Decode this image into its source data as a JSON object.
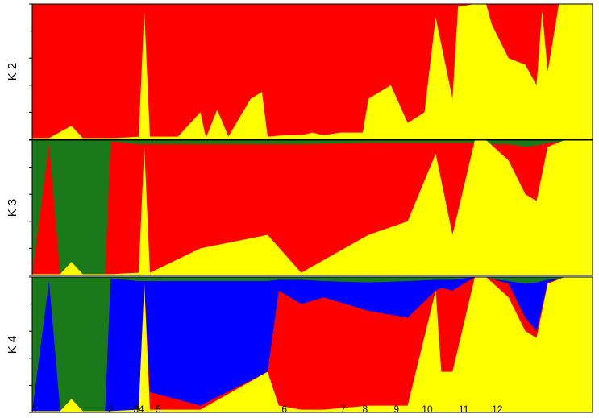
{
  "chart_data": {
    "type": "area",
    "description_of_layout": "stacked",
    "ylim": [
      0,
      1
    ],
    "colors": {
      "red": "#ff0000",
      "yellow": "#ffff00",
      "green": "#1a7a1a",
      "blue": "#0000ff"
    },
    "population_labels": [
      "1",
      "2",
      "34",
      "5",
      "6",
      "7",
      "8",
      "9",
      "10",
      "11",
      "12"
    ],
    "panels": [
      {
        "label": "K 2",
        "order": [
          "yellow",
          "red"
        ],
        "boundaries": {
          "x": [
            0,
            0.03,
            0.07,
            0.09,
            0.1,
            0.15,
            0.19,
            0.2,
            0.21,
            0.26,
            0.3,
            0.31,
            0.33,
            0.35,
            0.39,
            0.41,
            0.42,
            0.45,
            0.46,
            0.48,
            0.5,
            0.52,
            0.55,
            0.59,
            0.6,
            0.64,
            0.67,
            0.7,
            0.72,
            0.75,
            0.76,
            0.79,
            0.8,
            0.81,
            0.82,
            0.85,
            0.88,
            0.9,
            0.91,
            0.92,
            0.94,
            0.95,
            0.96,
            1
          ],
          "yellow": [
            [
              0.01
            ],
            [
              0.01
            ],
            [
              0.1
            ],
            [
              0.01
            ],
            [
              0.01
            ],
            [
              0.01
            ],
            [
              0.02
            ],
            [
              0.95
            ],
            [
              0.02
            ],
            [
              0.02
            ],
            [
              0.2
            ],
            [
              0.01
            ],
            [
              0.22
            ],
            [
              0.02
            ],
            [
              0.3
            ],
            [
              0.35
            ],
            [
              0.02
            ],
            [
              0.03
            ],
            [
              0.03
            ],
            [
              0.03
            ],
            [
              0.05
            ],
            [
              0.03
            ],
            [
              0.05
            ],
            [
              0.05
            ],
            [
              0.3
            ],
            [
              0.4
            ],
            [
              0.12
            ],
            [
              0.2
            ],
            [
              0.9
            ],
            [
              0.3
            ],
            [
              0.98
            ],
            [
              1
            ],
            [
              1
            ],
            [
              1
            ],
            [
              0.85
            ],
            [
              0.6
            ],
            [
              0.55
            ],
            [
              0.4
            ],
            [
              0.95
            ],
            [
              0.5
            ],
            [
              1
            ],
            [
              1
            ],
            [
              1
            ],
            [
              1
            ]
          ]
        }
      },
      {
        "label": "K 3",
        "order": [
          "yellow",
          "red",
          "green"
        ],
        "boundaries": {
          "x": [
            0,
            0.03,
            0.05,
            0.07,
            0.09,
            0.13,
            0.14,
            0.19,
            0.2,
            0.21,
            0.3,
            0.42,
            0.48,
            0.6,
            0.67,
            0.72,
            0.75,
            0.79,
            0.81,
            0.85,
            0.88,
            0.9,
            0.92,
            0.95,
            0.96,
            1
          ],
          "yellow": [
            0.01,
            0.01,
            0.01,
            0.1,
            0.01,
            0.01,
            0.01,
            0.02,
            0.95,
            0.02,
            0.2,
            0.3,
            0.02,
            0.3,
            0.4,
            0.9,
            0.3,
            1,
            1,
            0.85,
            0.6,
            0.55,
            0.95,
            1,
            1,
            1
          ],
          "red": [
            0.01,
            0.97,
            0.01,
            0.1,
            0.01,
            0.01,
            0.99,
            0.97,
            0.97,
            0.97,
            0.97,
            0.97,
            0.97,
            0.98,
            0.98,
            0.98,
            0.98,
            0.98,
            0.97,
            0.97,
            0.95,
            0.96,
            0.98,
            0.99,
            1,
            1
          ]
        }
      },
      {
        "label": "K 4",
        "order": [
          "yellow",
          "red",
          "blue",
          "green"
        ],
        "boundaries": {
          "x": [
            0,
            0.03,
            0.05,
            0.07,
            0.09,
            0.13,
            0.14,
            0.19,
            0.2,
            0.21,
            0.3,
            0.42,
            0.44,
            0.48,
            0.52,
            0.6,
            0.67,
            0.72,
            0.73,
            0.75,
            0.79,
            0.81,
            0.85,
            0.88,
            0.9,
            0.92,
            0.95,
            0.96,
            1
          ],
          "yellow": [
            0.01,
            0.01,
            0.01,
            0.1,
            0.01,
            0.01,
            0.01,
            0.02,
            0.95,
            0.02,
            0.02,
            0.3,
            0.05,
            0.02,
            0.02,
            0.05,
            0.05,
            0.9,
            0.3,
            0.3,
            1,
            1,
            0.85,
            0.6,
            0.55,
            0.95,
            1,
            1,
            1
          ],
          "red": [
            0.01,
            0.01,
            0.01,
            0.1,
            0.01,
            0.01,
            0.01,
            0.02,
            0.95,
            0.15,
            0.05,
            0.3,
            0.9,
            0.8,
            0.85,
            0.75,
            0.7,
            0.9,
            0.92,
            0.9,
            1,
            1,
            0.95,
            0.7,
            0.6,
            0.96,
            1,
            1,
            1
          ],
          "blue": [
            0.01,
            0.97,
            0.01,
            0.1,
            0.01,
            0.01,
            0.99,
            0.97,
            0.97,
            0.97,
            0.97,
            0.97,
            0.98,
            0.98,
            0.97,
            0.96,
            0.97,
            0.98,
            0.98,
            0.98,
            1,
            0.99,
            0.97,
            0.95,
            0.96,
            0.98,
            0.99,
            1,
            1
          ]
        }
      }
    ]
  }
}
